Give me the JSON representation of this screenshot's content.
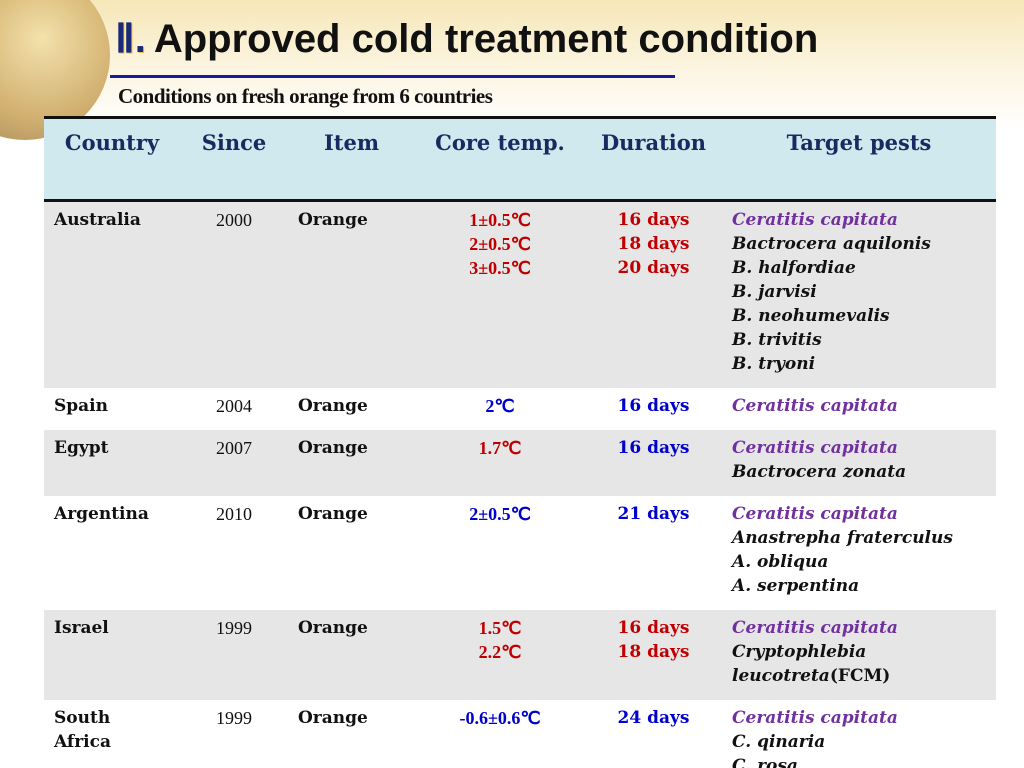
{
  "header": {
    "section_number": "Ⅱ.",
    "title": "Approved cold treatment condition",
    "subtitle": "Conditions on fresh orange from 6 countries"
  },
  "table": {
    "columns": [
      "Country",
      "Since",
      "Item",
      "Core temp.",
      "Duration",
      "Target pests"
    ],
    "rows": [
      {
        "country": "Australia",
        "since": "2000",
        "item": "Orange",
        "temps": [
          "1±0.5℃",
          "2±0.5℃",
          "3±0.5℃"
        ],
        "durations": [
          "16 days",
          "18 days",
          "20 days"
        ],
        "color": "#c00000",
        "pests": [
          "Ceratitis capitata",
          "Bactrocera aquilonis",
          "B. halfordiae",
          "B. jarvisi",
          "B. neohumevalis",
          "B. trivitis",
          "B. tryoni"
        ]
      },
      {
        "country": "Spain",
        "since": "2004",
        "item": "Orange",
        "temps": [
          "2℃"
        ],
        "durations": [
          "16 days"
        ],
        "color": "#0000cc",
        "pests": [
          "Ceratitis capitata"
        ]
      },
      {
        "country": "Egypt",
        "since": "2007",
        "item": "Orange",
        "temps": [
          "1.7℃"
        ],
        "durations": [
          "16 days"
        ],
        "temp_color": "#c00000",
        "color": "#0000cc",
        "pests": [
          "Ceratitis capitata",
          "Bactrocera zonata"
        ]
      },
      {
        "country": "Argentina",
        "since": "2010",
        "item": "Orange",
        "temps": [
          "2±0.5℃"
        ],
        "durations": [
          "21 days"
        ],
        "color": "#0000cc",
        "pests": [
          "Ceratitis capitata",
          "Anastrepha fraterculus",
          "A. obliqua",
          "A. serpentina"
        ]
      },
      {
        "country": "Israel",
        "since": "1999",
        "item": "Orange",
        "temps": [
          "1.5℃",
          "2.2℃"
        ],
        "durations": [
          "16 days",
          "18 days"
        ],
        "color": "#c00000",
        "pests": [
          "Ceratitis capitata",
          {
            "name": "Cryptophlebia leucotreta",
            "note": "(FCM)"
          }
        ]
      },
      {
        "country": "South Africa",
        "since": "1999",
        "item": "Orange",
        "temps": [
          "-0.6±0.6℃"
        ],
        "durations": [
          "24 days"
        ],
        "color": "#0000cc",
        "pests": [
          "Ceratitis capitata",
          "C. qinaria",
          "C. rosa"
        ]
      }
    ]
  }
}
